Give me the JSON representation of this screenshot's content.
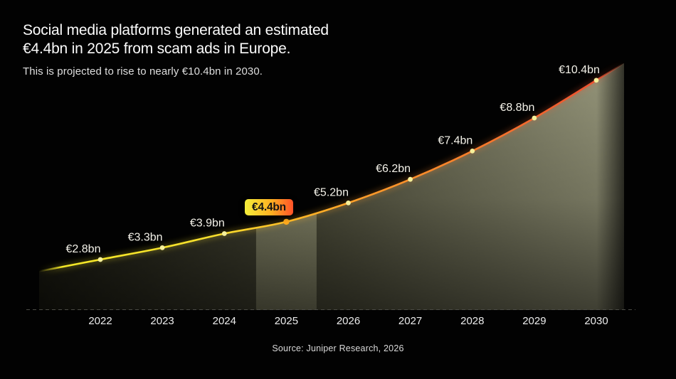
{
  "header": {
    "title_line1": "Social media platforms generated an estimated",
    "title_line2": "€4.4bn in 2025 from scam ads in Europe.",
    "subtitle": "This is projected to rise to nearly €10.4bn in 2030."
  },
  "chart_data": {
    "type": "area",
    "title": "Social media platforms generated an estimated €4.4bn in 2025 from scam ads in Europe.",
    "subtitle": "This is projected to rise to nearly €10.4bn in 2030.",
    "unit": "€bn",
    "xlabel": "",
    "ylabel": "",
    "ylim": [
      0,
      11
    ],
    "grid": false,
    "legend": false,
    "categories": [
      "2022",
      "2023",
      "2024",
      "2025",
      "2026",
      "2027",
      "2028",
      "2029",
      "2030"
    ],
    "points": [
      {
        "year": 2022,
        "value": 2.8,
        "label": "€2.8bn",
        "highlight": false
      },
      {
        "year": 2023,
        "value": 3.3,
        "label": "€3.3bn",
        "highlight": false
      },
      {
        "year": 2024,
        "value": 3.9,
        "label": "€3.9bn",
        "highlight": false
      },
      {
        "year": 2025,
        "value": 4.4,
        "label": "€4.4bn",
        "highlight": true
      },
      {
        "year": 2026,
        "value": 5.2,
        "label": "€5.2bn",
        "highlight": false
      },
      {
        "year": 2027,
        "value": 6.2,
        "label": "€6.2bn",
        "highlight": false
      },
      {
        "year": 2028,
        "value": 7.4,
        "label": "€7.4bn",
        "highlight": false
      },
      {
        "year": 2029,
        "value": 8.8,
        "label": "€8.8bn",
        "highlight": false
      },
      {
        "year": 2030,
        "value": 10.4,
        "label": "€10.4bn",
        "highlight": false
      }
    ],
    "highlight": {
      "year": 2025,
      "label": "€4.4bn"
    },
    "colors": {
      "background": "#020202",
      "line_start_yellow": "#f5e927",
      "line_mid_orange": "#ff9d2a",
      "line_end_red_orange": "#ee5230",
      "area_olive_light": "#9a9a7e",
      "area_olive_dark": "#16160e",
      "dot_pale_yellow": "#f6f09a",
      "dot_highlight_orange": "#ffa91d",
      "badge_gradient_from": "#f4ee3a",
      "badge_gradient_to": "#ff5229",
      "label_text": "#f3f1e8",
      "axis_text": "#ececec"
    }
  },
  "source": {
    "text": "Source: Juniper Research, 2026"
  }
}
